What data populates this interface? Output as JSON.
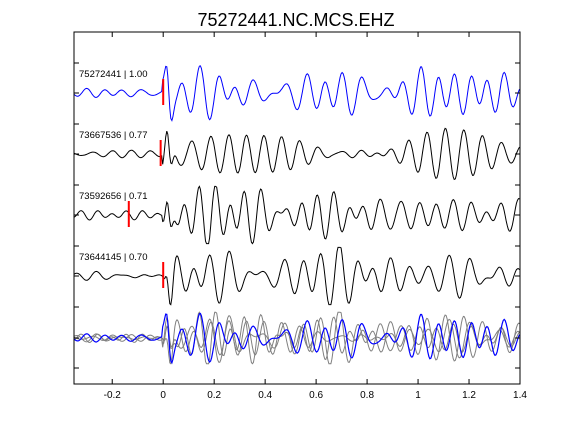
{
  "chart_data": {
    "type": "line",
    "title": "75272441.NC.MCS.EHZ",
    "xlabel": "",
    "ylabel": "",
    "xlim": [
      -0.35,
      1.4
    ],
    "x_ticks": [
      "-0.2",
      "0",
      "0.2",
      "0.4",
      "0.6",
      "0.8",
      "1",
      "1.2",
      "1.4"
    ],
    "x_tick_values": [
      -0.2,
      0,
      0.2,
      0.4,
      0.6,
      0.8,
      1.0,
      1.2,
      1.4
    ],
    "grid": false,
    "reference_color": "#0000ff",
    "neighbor_color": "#000000",
    "stack_color": "#808080",
    "pick_color": "#ff0000",
    "traces": [
      {
        "id": "75272441",
        "cc": "1.00",
        "label": "75272441 | 1.00",
        "color": "#0000ff",
        "pick_time": 0.0,
        "seed": 1
      },
      {
        "id": "73667536",
        "cc": "0.77",
        "label": "73667536 | 0.77",
        "color": "#000000",
        "pick_time": -0.01,
        "seed": 2
      },
      {
        "id": "73592656",
        "cc": "0.71",
        "label": "73592656 | 0.71",
        "color": "#000000",
        "pick_time": -0.135,
        "seed": 3
      },
      {
        "id": "73644145",
        "cc": "0.70",
        "label": "73644145 | 0.70",
        "color": "#000000",
        "pick_time": 0.0,
        "seed": 4
      }
    ],
    "overlay": {
      "description_traces": 4,
      "highlight": "75272441"
    }
  }
}
